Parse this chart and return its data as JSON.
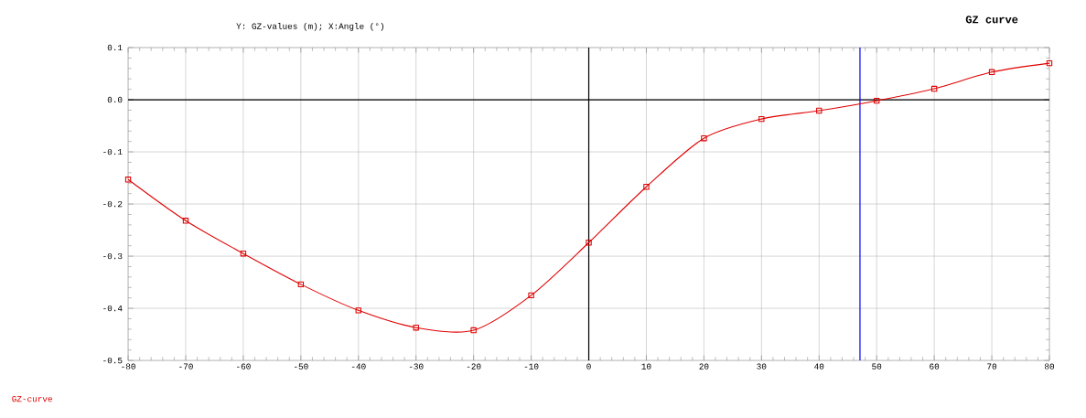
{
  "chart_data": {
    "type": "line",
    "title": "GZ curve",
    "annotations": [
      "Y: GZ-values (m);   X:Angle (°)"
    ],
    "x": [
      -80,
      -70,
      -60,
      -50,
      -40,
      -30,
      -20,
      -10,
      0,
      10,
      20,
      30,
      40,
      50,
      60,
      70,
      80
    ],
    "series": [
      {
        "name": "GZ-curve",
        "color": "#e00000",
        "values": [
          -0.153,
          -0.232,
          -0.295,
          -0.354,
          -0.404,
          -0.437,
          -0.442,
          -0.375,
          -0.274,
          -0.167,
          -0.074,
          -0.037,
          -0.021,
          -0.002,
          0.021,
          0.053,
          0.07
        ]
      }
    ],
    "xlim": [
      -80,
      80
    ],
    "xticks": [
      -80,
      -70,
      -60,
      -50,
      -40,
      -30,
      -20,
      -10,
      0,
      10,
      20,
      30,
      40,
      50,
      60,
      70,
      80
    ],
    "ylim": [
      -0.5,
      0.1
    ],
    "yticks": [
      -0.5,
      -0.4,
      -0.3,
      -0.2,
      -0.1,
      {
        "value": 0,
        "label": "0.0"
      },
      0.1
    ],
    "ref_lines": [
      {
        "axis": "x",
        "value": 47.1,
        "color": "#0000ff"
      }
    ],
    "grid": true,
    "marker": "square",
    "line_style": "solid",
    "legend": "bottom left"
  }
}
